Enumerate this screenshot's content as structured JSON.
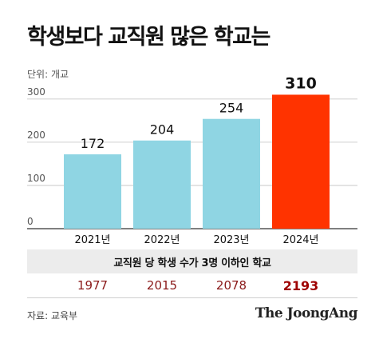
{
  "title": "학생보다 교직원 많은 학교는",
  "unit_label": "단위: 개교",
  "colors": {
    "bar": "#8fd5e3",
    "highlight": "#ff3300",
    "table_header_bg": "#ececec",
    "table_value": "#8b1a1a"
  },
  "chart_data": {
    "type": "bar",
    "categories": [
      "2021년",
      "2022년",
      "2023년",
      "2024년"
    ],
    "values": [
      172,
      204,
      254,
      310
    ],
    "highlight_index": 3,
    "yticks": [
      0,
      100,
      200,
      300
    ],
    "ylim": [
      0,
      330
    ],
    "grid": true,
    "table": {
      "header": "교직원 당 학생 수가 3명 이하인 학교",
      "values": [
        "1977",
        "2015",
        "2078",
        "2193"
      ]
    }
  },
  "source": "자료: 교육부",
  "brand": "The JoongAng"
}
